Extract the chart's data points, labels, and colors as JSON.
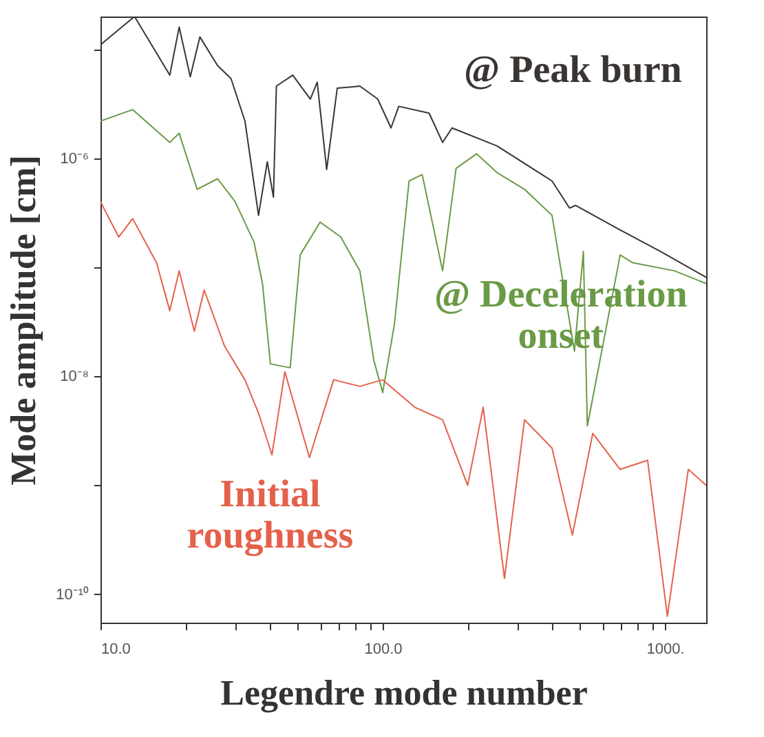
{
  "chart_data": {
    "type": "line",
    "xlabel": "Legendre mode number",
    "ylabel": "Mode amplitude  [cm]",
    "log": "xy",
    "grid": false,
    "marker": "none",
    "line_style": "solid",
    "xlim": [
      10,
      1400
    ],
    "ylim": [
      5.5e-11,
      2e-05
    ],
    "xticks": [
      {
        "value": 10,
        "label": "10.0"
      },
      {
        "value": 20,
        "label": null
      },
      {
        "value": 30,
        "label": null
      },
      {
        "value": 40,
        "label": null
      },
      {
        "value": 50,
        "label": null
      },
      {
        "value": 60,
        "label": null
      },
      {
        "value": 70,
        "label": null
      },
      {
        "value": 80,
        "label": null
      },
      {
        "value": 90,
        "label": null
      },
      {
        "value": 100,
        "label": "100.0"
      },
      {
        "value": 200,
        "label": null
      },
      {
        "value": 300,
        "label": null
      },
      {
        "value": 400,
        "label": null
      },
      {
        "value": 500,
        "label": null
      },
      {
        "value": 600,
        "label": null
      },
      {
        "value": 700,
        "label": null
      },
      {
        "value": 800,
        "label": null
      },
      {
        "value": 900,
        "label": null
      },
      {
        "value": 1000,
        "label": "1000."
      }
    ],
    "yticks": [
      {
        "value": 1e-10,
        "label": "10⁻¹⁰"
      },
      {
        "value": 1e-09,
        "label": null
      },
      {
        "value": 1e-08,
        "label": "10⁻⁸"
      },
      {
        "value": 1e-07,
        "label": null
      },
      {
        "value": 1e-06,
        "label": "10⁻⁶"
      },
      {
        "value": 1e-05,
        "label": null
      }
    ],
    "series": [
      {
        "name": "@ Peak burn",
        "color": "#3a3433",
        "x": [
          10,
          13.2,
          17.6,
          19,
          20.8,
          22.5,
          26,
          29,
          32.5,
          36.3,
          39,
          41,
          42,
          48,
          55.4,
          58.6,
          63.3,
          69,
          83,
          96,
          107,
          114,
          146,
          163,
          176,
          254,
          398,
          459,
          482,
          694,
          965,
          1400
        ],
        "values": [
          1.1e-05,
          2e-05,
          5.8e-06,
          1.6e-05,
          5.6e-06,
          1.3e-05,
          7.1e-06,
          5.4e-06,
          2.2e-06,
          3e-07,
          9.3e-07,
          4.4e-07,
          4.6e-06,
          5.8e-06,
          3.5e-06,
          5e-06,
          7.9e-07,
          4.4e-06,
          4.6e-06,
          3.5e-06,
          1.9e-06,
          3e-06,
          2.6e-06,
          1.4e-06,
          1.9e-06,
          1.3e-06,
          6.2e-07,
          3.5e-07,
          3.7e-07,
          2.2e-07,
          1.4e-07,
          8.1e-08
        ]
      },
      {
        "name": "@ Deceleration\nonset",
        "color": "#6a9a45",
        "x": [
          10,
          13,
          17.6,
          19,
          22,
          26,
          30,
          35,
          37.5,
          40,
          47,
          51,
          60,
          71,
          83,
          93,
          100,
          110,
          124,
          138,
          163,
          182,
          215,
          254,
          318,
          398,
          478,
          514,
          531,
          694,
          770,
          1080,
          1400
        ],
        "values": [
          2.2e-06,
          2.8e-06,
          1.4e-06,
          1.7e-06,
          5.2e-07,
          6.5e-07,
          4e-07,
          1.7e-07,
          7.1e-08,
          1.3e-08,
          1.2e-08,
          1.3e-07,
          2.6e-07,
          1.9e-07,
          9.3e-08,
          1.4e-08,
          7.1e-09,
          3e-08,
          6.2e-07,
          7.1e-07,
          9.3e-08,
          8.1e-07,
          1.1e-06,
          7.4e-07,
          5.2e-07,
          3e-07,
          1.7e-08,
          1.4e-07,
          3.5e-09,
          1.3e-07,
          1.1e-07,
          9.3e-08,
          7.1e-08
        ]
      },
      {
        "name": "Initial\nroughness",
        "color": "#e5604a",
        "x": [
          10,
          11.6,
          13,
          15.8,
          17.6,
          19,
          21.5,
          23.3,
          27.5,
          32.5,
          36.3,
          40.5,
          45,
          55,
          67,
          83,
          100,
          130,
          163,
          200,
          227,
          270,
          318,
          398,
          470,
          555,
          694,
          868,
          1020,
          1210,
          1400
        ],
        "values": [
          4e-07,
          1.9e-07,
          2.8e-07,
          1.1e-07,
          4e-08,
          9.3e-08,
          2.6e-08,
          6.2e-08,
          1.9e-08,
          9.3e-09,
          4.6e-09,
          1.9e-09,
          1.1e-08,
          1.8e-09,
          9.3e-09,
          8.1e-09,
          9.3e-09,
          5.2e-09,
          4e-09,
          1e-09,
          5.2e-09,
          1.4e-10,
          4e-09,
          2.2e-09,
          3.5e-10,
          3e-09,
          1.4e-09,
          1.7e-09,
          6.3e-11,
          1.4e-09,
          1e-09
        ]
      }
    ]
  }
}
